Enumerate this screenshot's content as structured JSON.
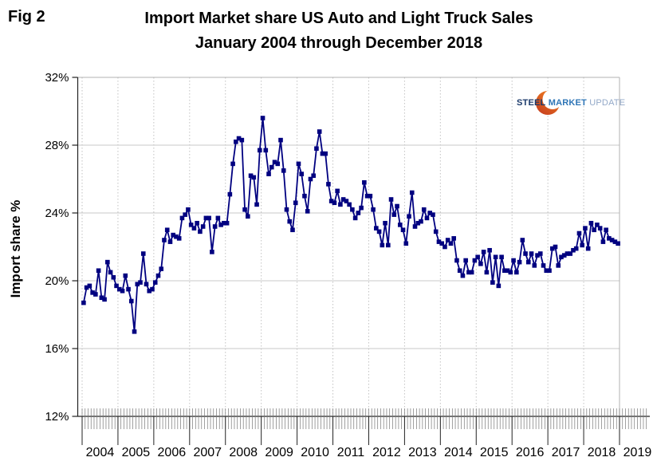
{
  "header": {
    "fig_label": "Fig 2",
    "title_line1": "Import Market share US Auto and Light Truck Sales",
    "title_line2": "January 2004 through December 2018"
  },
  "logo": {
    "word1": "STEEL",
    "word2": "MARKET",
    "word3": "UPDATE"
  },
  "colors": {
    "line": "#000080",
    "grid": "#c8c8c8",
    "year_grid": "#c2c2c2",
    "axis": "#222222",
    "border": "#b0b0b0",
    "tick": "#555555",
    "logo_orange_dark": "#c3391f",
    "logo_orange": "#f07d1f",
    "logo_navy": "#1b3a6b",
    "logo_blue": "#2e75b6",
    "logo_light_blue": "#93a9c8"
  },
  "chart_data": {
    "type": "line",
    "title": "Import Market share US Auto and Light Truck Sales January 2004 through December 2018",
    "xlabel": "",
    "ylabel": "Import share %",
    "ylim": [
      12,
      32
    ],
    "y_tick_step": 4,
    "y_tick_labels": [
      "32%",
      "28%",
      "24%",
      "20%",
      "16%",
      "12%"
    ],
    "x_year_labels": [
      "2004",
      "2005",
      "2006",
      "2007",
      "2008",
      "2009",
      "2010",
      "2011",
      "2012",
      "2013",
      "2014",
      "2015",
      "2016",
      "2017",
      "2018",
      "2019"
    ],
    "grid": "horizontal solid, vertical dotted at year boundaries, monthly minor ticks on x-axis",
    "legend": "none",
    "series": [
      {
        "name": "US import market share of auto and light truck sales, monthly",
        "start": "2004-01",
        "end": "2018-12",
        "marker": "square",
        "color": "#000080",
        "unit": "%",
        "values": [
          18.7,
          19.6,
          19.7,
          19.3,
          19.2,
          20.6,
          19.0,
          18.9,
          21.1,
          20.5,
          20.2,
          19.7,
          19.5,
          19.4,
          20.3,
          19.5,
          18.8,
          17.0,
          19.8,
          19.9,
          21.6,
          19.8,
          19.4,
          19.5,
          19.9,
          20.3,
          20.7,
          22.4,
          23.0,
          22.3,
          22.7,
          22.6,
          22.5,
          23.7,
          23.9,
          24.2,
          23.3,
          23.1,
          23.4,
          22.9,
          23.2,
          23.7,
          23.7,
          21.7,
          23.2,
          23.7,
          23.3,
          23.4,
          23.4,
          25.1,
          26.9,
          28.2,
          28.4,
          28.3,
          24.2,
          23.8,
          26.2,
          26.1,
          24.5,
          27.7,
          29.6,
          27.7,
          26.3,
          26.7,
          27.0,
          26.9,
          28.3,
          26.5,
          24.2,
          23.5,
          23.0,
          24.6,
          26.9,
          26.3,
          25.0,
          24.1,
          26.0,
          26.2,
          27.8,
          28.8,
          27.5,
          27.5,
          25.7,
          24.7,
          24.6,
          25.3,
          24.5,
          24.8,
          24.7,
          24.5,
          24.2,
          23.7,
          24.0,
          24.3,
          25.8,
          25.0,
          25.0,
          24.2,
          23.1,
          22.9,
          22.1,
          23.4,
          22.1,
          24.8,
          23.9,
          24.4,
          23.3,
          23.0,
          22.2,
          23.8,
          25.2,
          23.2,
          23.4,
          23.5,
          24.2,
          23.7,
          24.0,
          23.9,
          22.9,
          22.3,
          22.2,
          22.0,
          22.4,
          22.2,
          22.5,
          21.2,
          20.6,
          20.3,
          21.2,
          20.5,
          20.5,
          21.2,
          21.4,
          21.0,
          21.7,
          20.5,
          21.8,
          19.9,
          21.4,
          19.7,
          21.4,
          20.6,
          20.6,
          20.5,
          21.2,
          20.5,
          21.1,
          22.4,
          21.6,
          21.1,
          21.6,
          20.9,
          21.5,
          21.6,
          20.9,
          20.6,
          20.6,
          21.9,
          22.0,
          20.9,
          21.4,
          21.5,
          21.6,
          21.6,
          21.8,
          21.9,
          22.8,
          22.1,
          23.1,
          21.9,
          23.4,
          23.0,
          23.3,
          23.1,
          22.3,
          23.0,
          22.5,
          22.4,
          22.3,
          22.2
        ]
      }
    ]
  }
}
